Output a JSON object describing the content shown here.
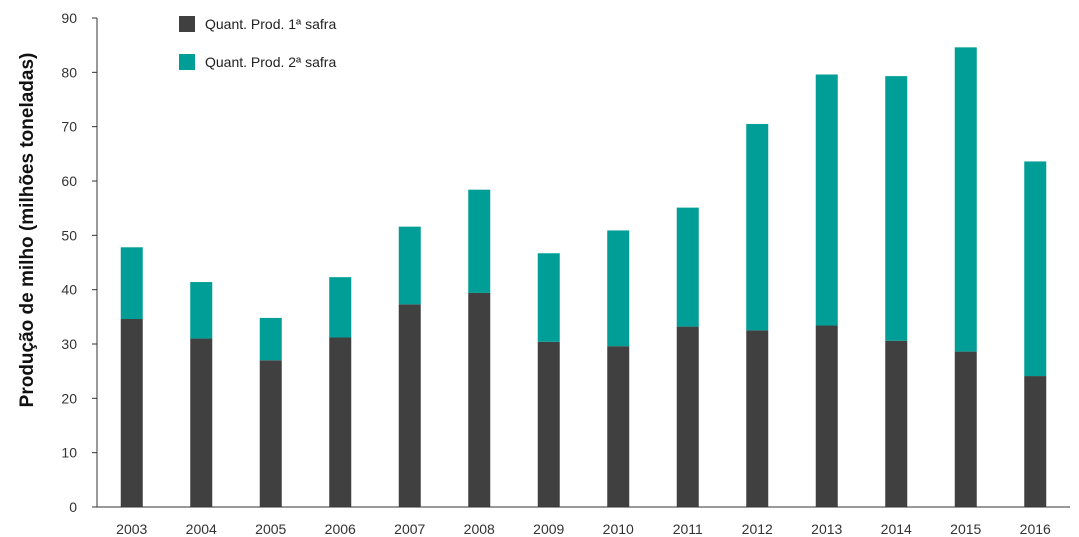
{
  "chart_data": {
    "type": "bar",
    "stacked": true,
    "ylabel": "Produção de milho (milhões toneladas)",
    "xlabel": "",
    "ylim": [
      0,
      90
    ],
    "yticks": [
      0,
      10,
      20,
      30,
      40,
      50,
      60,
      70,
      80,
      90
    ],
    "grid": false,
    "legend_position": "top-left",
    "categories": [
      "2003",
      "2004",
      "2005",
      "2006",
      "2007",
      "2008",
      "2009",
      "2010",
      "2011",
      "2012",
      "2013",
      "2014",
      "2015",
      "2016"
    ],
    "series": [
      {
        "name": "Quant. Prod. 1ª safra",
        "color": "#404040",
        "values": [
          34.6,
          31.0,
          27.0,
          31.2,
          37.3,
          39.4,
          30.4,
          29.6,
          33.2,
          32.5,
          33.4,
          30.6,
          28.6,
          24.1
        ]
      },
      {
        "name": "Quant. Prod. 2ª safra",
        "color": "#009e96",
        "values": [
          13.2,
          10.4,
          7.8,
          11.1,
          14.3,
          19.0,
          16.3,
          21.3,
          21.9,
          38.0,
          46.2,
          48.7,
          56.0,
          39.5
        ]
      }
    ]
  }
}
